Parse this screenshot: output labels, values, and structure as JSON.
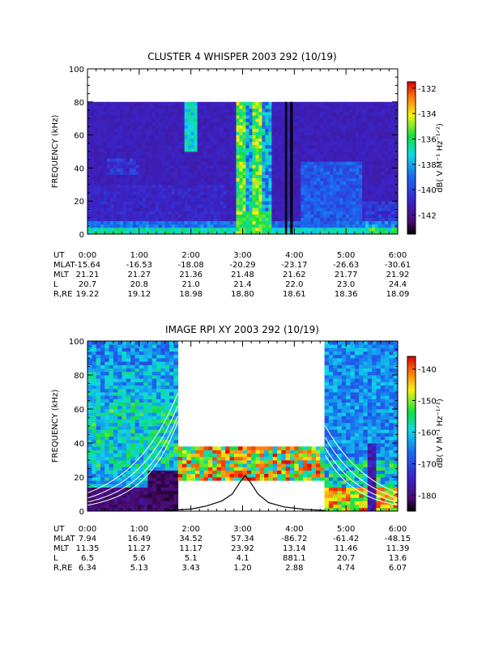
{
  "chart_data": [
    {
      "type": "heatmap",
      "title": "CLUSTER 4 WHISPER 2003 292 (10/19)",
      "ylabel": "FREQUENCY (kHz)",
      "ylim": [
        0,
        100
      ],
      "y_ticks": [
        "0",
        "20",
        "40",
        "60",
        "80",
        "100"
      ],
      "x_ticks": [
        "0:00",
        "1:00",
        "2:00",
        "3:00",
        "4:00",
        "5:00",
        "6:00"
      ],
      "xlim_hours": [
        0,
        6
      ],
      "data_top_khz": 80,
      "colorbar": {
        "label": "dB( V M⁻¹ Hz⁻¹ᐟ²)",
        "range": [
          -143.5,
          -131.5
        ],
        "ticks": [
          "-132",
          "-134",
          "-136",
          "-138",
          "-140",
          "-142"
        ]
      },
      "ephemeris": {
        "labels": [
          "UT",
          "MLAT",
          "MLT",
          "L",
          "R,RE"
        ],
        "rows": [
          [
            "0:00",
            "1:00",
            "2:00",
            "3:00",
            "4:00",
            "5:00",
            "6:00"
          ],
          [
            "-15.64",
            "-16.53",
            "-18.08",
            "-20.29",
            "-23.17",
            "-26.63",
            "-30.61"
          ],
          [
            "21.21",
            "21.27",
            "21.36",
            "21.48",
            "21.62",
            "21.77",
            "21.92"
          ],
          [
            "20.7",
            "20.8",
            "21.0",
            "21.4",
            "22.0",
            "23.0",
            "24.4"
          ],
          [
            "19.22",
            "19.12",
            "18.98",
            "18.80",
            "18.61",
            "18.36",
            "18.09"
          ]
        ]
      }
    },
    {
      "type": "heatmap",
      "title": "IMAGE RPI XY 2003 292 (10/19)",
      "ylabel": "FREQUENCY (kHz)",
      "ylim": [
        0,
        100
      ],
      "y_ticks": [
        "0",
        "20",
        "40",
        "60",
        "80",
        "100"
      ],
      "x_ticks": [
        "0:00",
        "1:00",
        "2:00",
        "3:00",
        "4:00",
        "5:00",
        "6:00"
      ],
      "xlim_hours": [
        0,
        6
      ],
      "no_data_gap_hours": [
        1.75,
        4.6
      ],
      "gap_band_khz": [
        18,
        38
      ],
      "colorbar": {
        "label": "dB( V M⁻¹ Hz⁻¹ᐟ²)",
        "range": [
          -185,
          -136
        ],
        "ticks": [
          "-140",
          "-150",
          "-160",
          "-170",
          "-180"
        ]
      },
      "overlay_curve": {
        "hours": [
          1.5,
          2.0,
          2.3,
          2.6,
          2.8,
          2.95,
          3.05,
          3.15,
          3.3,
          3.5,
          3.8,
          4.2,
          4.6
        ],
        "khz": [
          0.3,
          1.2,
          3,
          6,
          10,
          17,
          21,
          17,
          10,
          5,
          2.5,
          1,
          0.4
        ]
      },
      "ephemeris": {
        "labels": [
          "UT",
          "MLAT",
          "MLT",
          "L",
          "R,RE"
        ],
        "rows": [
          [
            "0:00",
            "1:00",
            "2:00",
            "3:00",
            "4:00",
            "5:00",
            "6:00"
          ],
          [
            "7.94",
            "16.49",
            "34.52",
            "57.34",
            "-86.72",
            "-61.42",
            "-48.15"
          ],
          [
            "11.35",
            "11.27",
            "11.17",
            "23.92",
            "13.14",
            "11.46",
            "11.39"
          ],
          [
            "6.5",
            "5.6",
            "5.1",
            "4.1",
            "881.1",
            "20.7",
            "13.6"
          ],
          [
            "6.34",
            "5.13",
            "3.43",
            "1.20",
            "2.88",
            "4.74",
            "6.07"
          ]
        ]
      }
    }
  ]
}
